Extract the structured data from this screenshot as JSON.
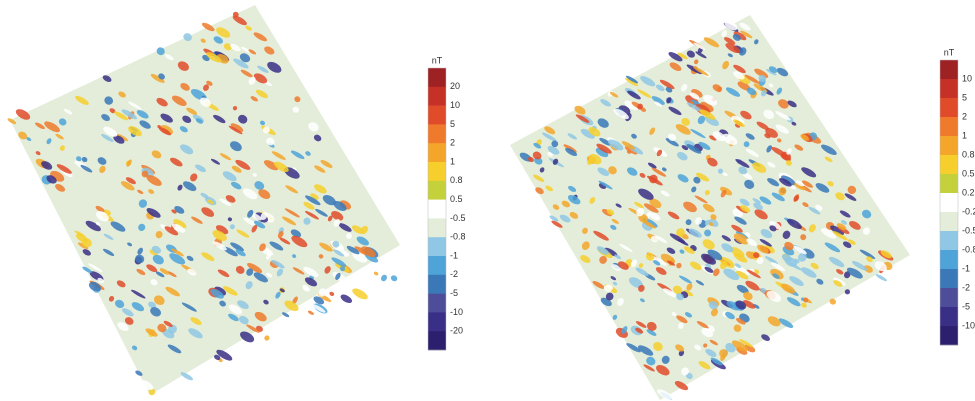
{
  "colorbars": [
    {
      "unit": "nT",
      "labels": [
        "20",
        "10",
        "5",
        "2",
        "1",
        "0.8",
        "0.5",
        "-0.5",
        "-0.8",
        "-1",
        "-2",
        "-5",
        "-10",
        "-20"
      ],
      "colors": [
        "#9e2224",
        "#c53027",
        "#e04b2a",
        "#ef7a2c",
        "#f4a62a",
        "#f6cf2c",
        "#c5d13a",
        "#ffffff",
        "#e4edd9",
        "#8fc7e4",
        "#4ea3d8",
        "#3a78b8",
        "#4d4d9a",
        "#3a2f86",
        "#2b1f6e"
      ]
    },
    {
      "unit": "nT",
      "labels": [
        "10",
        "5",
        "2",
        "1",
        "0.8",
        "0.5",
        "0.2",
        "-0.2",
        "-0.5",
        "-0.8",
        "-1",
        "-2",
        "-5",
        "-10"
      ],
      "colors": [
        "#9e2224",
        "#c53027",
        "#e04b2a",
        "#ef7a2c",
        "#f4a62a",
        "#f6cf2c",
        "#c5d13a",
        "#ffffff",
        "#e4edd9",
        "#8fc7e4",
        "#4ea3d8",
        "#3a78b8",
        "#4d4d9a",
        "#3a2f86",
        "#2b1f6e"
      ]
    }
  ]
}
